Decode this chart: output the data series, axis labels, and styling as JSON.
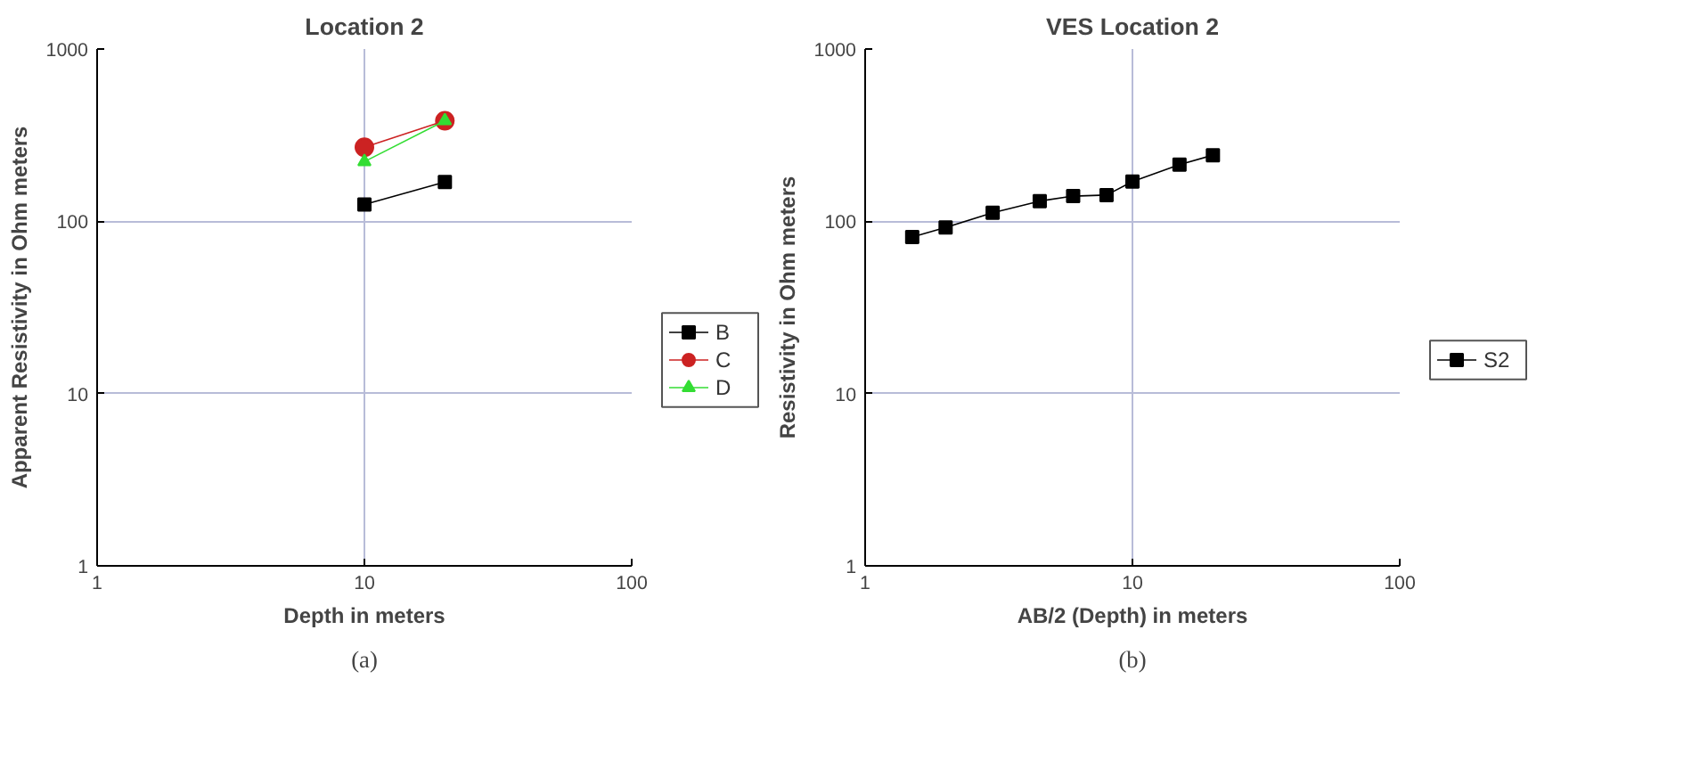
{
  "chart_data": [
    {
      "type": "line",
      "title": "Location 2",
      "xlabel": "Depth in meters",
      "ylabel": "Apparent Resistivity in Ohm meters",
      "log": "xy",
      "xlim": [
        1,
        100
      ],
      "ylim": [
        1,
        1000
      ],
      "xticks": [
        1,
        10,
        100
      ],
      "yticks": [
        1,
        10,
        100,
        1000
      ],
      "grid": true,
      "legend": "right",
      "annotations": [
        "(a)"
      ],
      "series": [
        {
          "name": "B",
          "color": "#000000",
          "marker": "square",
          "x": [
            10,
            20
          ],
          "values": [
            125,
            169
          ]
        },
        {
          "name": "C",
          "color": "#cc2222",
          "marker": "circle",
          "x": [
            10,
            20
          ],
          "values": [
            269,
            383
          ]
        },
        {
          "name": "D",
          "color": "#33dd33",
          "marker": "triangle",
          "x": [
            10,
            20
          ],
          "values": [
            222,
            383
          ]
        }
      ]
    },
    {
      "type": "line",
      "title": "VES Location 2",
      "xlabel": "AB/2 (Depth) in meters",
      "ylabel": "Resistivity in Ohm meters",
      "log": "xy",
      "xlim": [
        1,
        100
      ],
      "ylim": [
        1,
        1000
      ],
      "xticks": [
        1,
        10,
        100
      ],
      "yticks": [
        1,
        10,
        100,
        1000
      ],
      "grid": true,
      "legend": "right",
      "annotations": [
        "(b)"
      ],
      "series": [
        {
          "name": "S2",
          "color": "#000000",
          "marker": "square",
          "x": [
            1.5,
            2,
            3,
            4.5,
            6,
            8,
            10,
            15,
            20
          ],
          "values": [
            81,
            92,
            112,
            131,
            140,
            142,
            170,
            213,
            242
          ]
        }
      ]
    }
  ]
}
